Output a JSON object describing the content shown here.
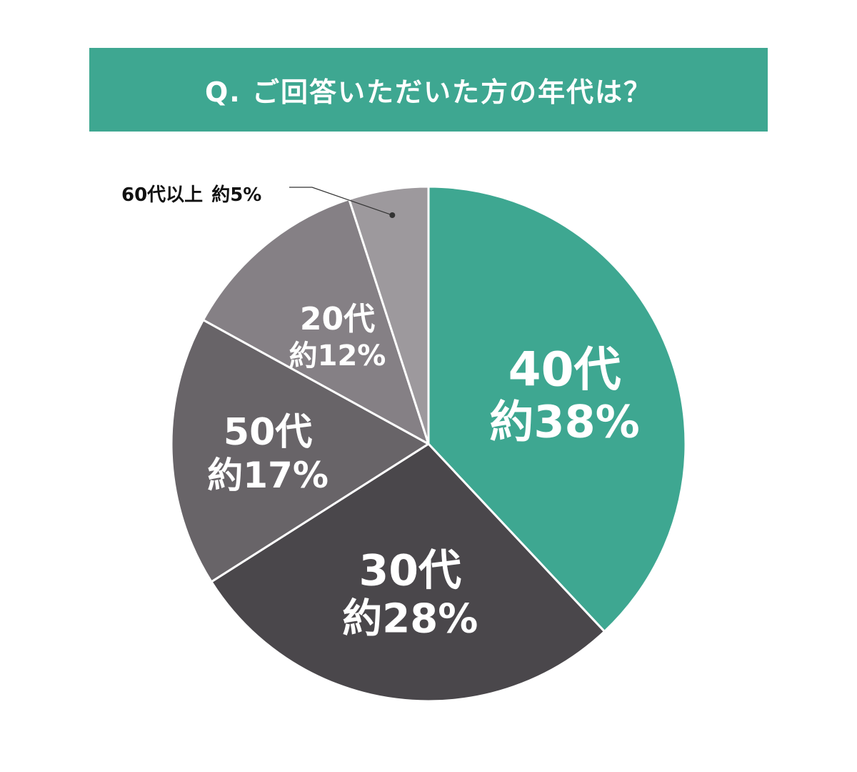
{
  "title": "Q. ご回答いただいた方の年代は？",
  "colors": {
    "banner": "#3ea791",
    "slice_40": "#3ea791",
    "slice_30": "#4a474b",
    "slice_50": "#686468",
    "slice_20": "#858085",
    "slice_60": "#9d999d",
    "outline": "#ffffff",
    "callout_text": "#111111"
  },
  "chart_data": {
    "type": "pie",
    "start": "12 o'clock",
    "direction": "clockwise",
    "slices": [
      {
        "category": "40代",
        "value": 38,
        "value_label": "約38%",
        "color_key": "slice_40"
      },
      {
        "category": "30代",
        "value": 28,
        "value_label": "約28%",
        "color_key": "slice_30"
      },
      {
        "category": "50代",
        "value": 17,
        "value_label": "約17%",
        "color_key": "slice_50"
      },
      {
        "category": "20代",
        "value": 12,
        "value_label": "約12%",
        "color_key": "slice_20"
      },
      {
        "category": "60代以上",
        "value": 5,
        "value_label": "約5%",
        "color_key": "slice_60"
      }
    ]
  }
}
